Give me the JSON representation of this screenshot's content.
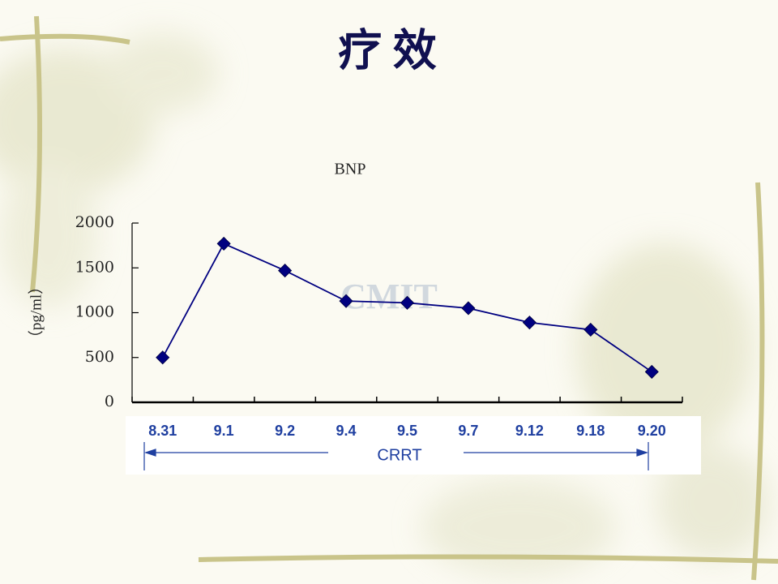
{
  "chart_data": {
    "type": "line",
    "slide_title": "疗 效",
    "title": "BNP",
    "y_label": "（pg/ml）",
    "categories": [
      "8.31",
      "9.1",
      "9.2",
      "9.4",
      "9.5",
      "9.7",
      "9.12",
      "9.18",
      "9.20"
    ],
    "series": [
      {
        "color": "#000080",
        "values": [
          500,
          1770,
          1470,
          1130,
          1110,
          1050,
          890,
          810,
          340
        ]
      }
    ],
    "ylim": [
      0,
      2000
    ],
    "yticks": [
      0,
      500,
      1000,
      1500,
      2000
    ],
    "annotation": "CRRT",
    "watermark": "CMIT"
  }
}
